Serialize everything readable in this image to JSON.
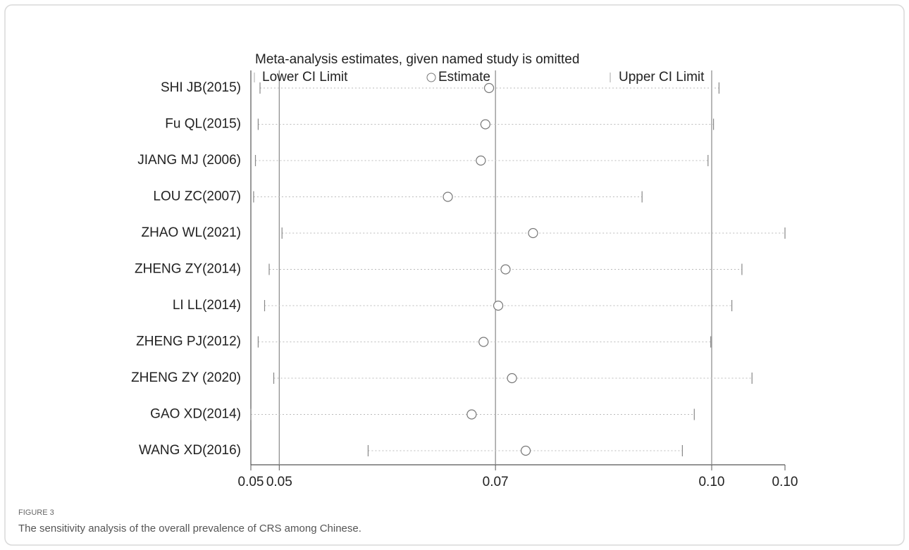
{
  "chart_data": {
    "type": "forest",
    "title": "Meta-analysis estimates, given named study is omitted",
    "categories": [
      "SHI JB(2015)",
      "Fu QL(2015)",
      "JIANG MJ (2006)",
      "LOU ZC(2007)",
      "ZHAO WL(2021)",
      "ZHENG ZY(2014)",
      "LI LL(2014)",
      "ZHENG PJ(2012)",
      "ZHENG ZY (2020)",
      "GAO XD(2014)",
      "WANG XD(2016)"
    ],
    "series": [
      {
        "name": "Lower CI Limit",
        "color": "#888888",
        "values": [
          0.0462,
          0.046,
          0.0457,
          0.0455,
          0.0486,
          0.0472,
          0.0467,
          0.046,
          0.0477,
          0.0452,
          0.058
        ]
      },
      {
        "name": "Estimate",
        "color": "#777777",
        "values": [
          0.0712,
          0.0708,
          0.0703,
          0.0667,
          0.076,
          0.073,
          0.0722,
          0.0706,
          0.0737,
          0.0693,
          0.0752
        ]
      },
      {
        "name": "Upper CI Limit",
        "color": "#888888",
        "values": [
          0.0963,
          0.0957,
          0.0951,
          0.0879,
          0.1035,
          0.0988,
          0.0977,
          0.0954,
          0.0999,
          0.0936,
          0.0923
        ]
      }
    ],
    "xlim": [
      0.0452,
      0.1035
    ],
    "xticks": [
      {
        "value": 0.0452,
        "label": "0.05"
      },
      {
        "value": 0.0483,
        "label": "0.05"
      },
      {
        "value": 0.0719,
        "label": "0.07"
      },
      {
        "value": 0.0955,
        "label": "0.10"
      },
      {
        "value": 0.1035,
        "label": "0.10"
      }
    ],
    "reference_lines": [
      0.0483,
      0.0719,
      0.0955
    ]
  },
  "caption": {
    "label": "FIGURE 3",
    "text": "The sensitivity analysis of the overall prevalence of CRS among Chinese."
  }
}
